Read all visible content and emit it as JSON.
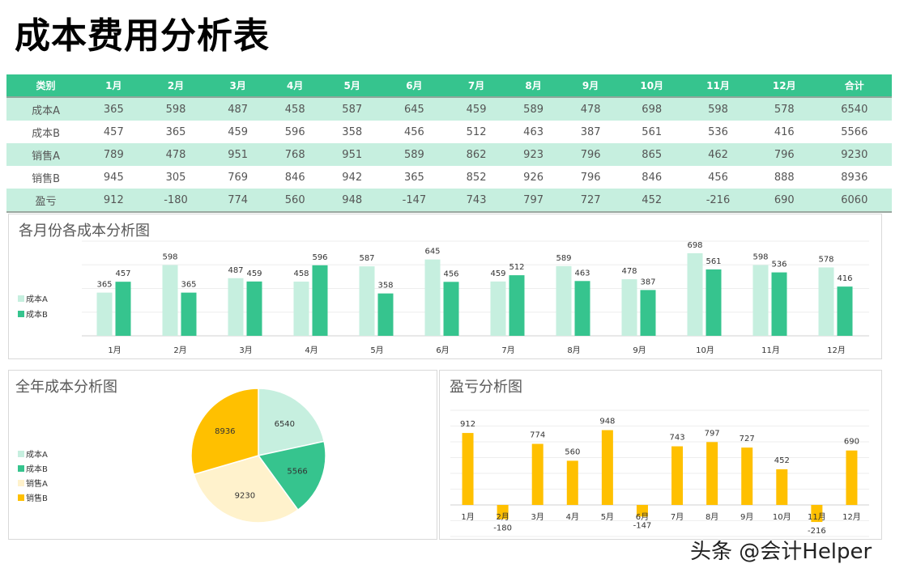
{
  "title": "成本费用分析表",
  "table": {
    "headers": [
      "类别",
      "1月",
      "2月",
      "3月",
      "4月",
      "5月",
      "6月",
      "7月",
      "8月",
      "9月",
      "10月",
      "11月",
      "12月",
      "合计"
    ],
    "rows": [
      [
        "成本A",
        "365",
        "598",
        "487",
        "458",
        "587",
        "645",
        "459",
        "589",
        "478",
        "698",
        "598",
        "578",
        "6540"
      ],
      [
        "成本B",
        "457",
        "365",
        "459",
        "596",
        "358",
        "456",
        "512",
        "463",
        "387",
        "561",
        "536",
        "416",
        "5566"
      ],
      [
        "销售A",
        "789",
        "478",
        "951",
        "768",
        "951",
        "589",
        "862",
        "923",
        "796",
        "865",
        "462",
        "796",
        "9230"
      ],
      [
        "销售B",
        "945",
        "305",
        "769",
        "846",
        "942",
        "365",
        "852",
        "926",
        "796",
        "846",
        "456",
        "888",
        "8936"
      ],
      [
        "盈亏",
        "912",
        "-180",
        "774",
        "560",
        "948",
        "-147",
        "743",
        "797",
        "727",
        "452",
        "-216",
        "690",
        "6060"
      ]
    ]
  },
  "chart_data": [
    {
      "type": "bar",
      "title": "各月份各成本分析图",
      "categories": [
        "1月",
        "2月",
        "3月",
        "4月",
        "5月",
        "6月",
        "7月",
        "8月",
        "9月",
        "10月",
        "11月",
        "12月"
      ],
      "series": [
        {
          "name": "成本A",
          "color": "#c6efdf",
          "values": [
            365,
            598,
            487,
            458,
            587,
            645,
            459,
            589,
            478,
            698,
            598,
            578
          ]
        },
        {
          "name": "成本B",
          "color": "#36c48e",
          "values": [
            457,
            365,
            459,
            596,
            358,
            456,
            512,
            463,
            387,
            561,
            536,
            416
          ]
        }
      ],
      "ylim": [
        0,
        800
      ],
      "grid": true,
      "legend": "left"
    },
    {
      "type": "pie",
      "title": "全年成本分析图",
      "categories": [
        "成本A",
        "成本B",
        "销售A",
        "销售B"
      ],
      "values": [
        6540,
        5566,
        9230,
        8936
      ],
      "colors": [
        "#c6efdf",
        "#36c48e",
        "#fff2cc",
        "#ffc000"
      ],
      "legend": "left"
    },
    {
      "type": "bar",
      "title": "盈亏分析图",
      "categories": [
        "1月",
        "2月",
        "3月",
        "4月",
        "5月",
        "6月",
        "7月",
        "8月",
        "9月",
        "10月",
        "11月",
        "12月"
      ],
      "values": [
        912,
        -180,
        774,
        560,
        948,
        -147,
        743,
        797,
        727,
        452,
        -216,
        690
      ],
      "color": "#ffc000",
      "ylim": [
        -400,
        1200
      ],
      "grid": true
    }
  ],
  "watermark": "头条 @会计Helper"
}
